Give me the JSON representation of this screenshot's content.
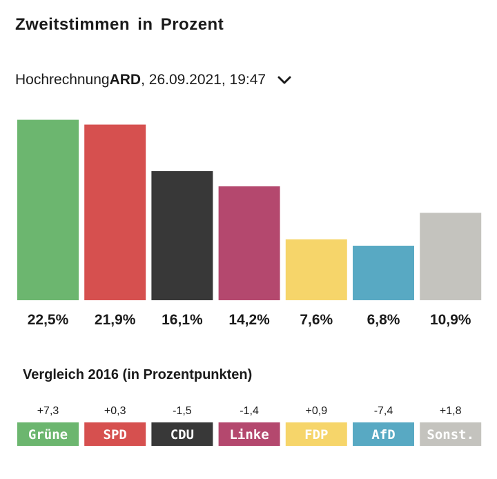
{
  "header": {
    "title": "Zweitstimmen in Prozent",
    "subtitle_prefix": "Hochrechnung ",
    "subtitle_source": "ARD",
    "subtitle_suffix": ", 26.09.2021, 19:47",
    "dropdown_icon": "chevron-down-icon"
  },
  "chart_data": {
    "type": "bar",
    "categories": [
      "Grüne",
      "SPD",
      "CDU",
      "Linke",
      "FDP",
      "AfD",
      "Sonst."
    ],
    "values": [
      22.5,
      21.9,
      16.1,
      14.2,
      7.6,
      6.8,
      10.9
    ],
    "value_labels": [
      "22,5%",
      "21,9%",
      "16,1%",
      "14,2%",
      "7,6%",
      "6,8%",
      "10,9%"
    ],
    "colors": [
      "#6cb66f",
      "#d6504f",
      "#383838",
      "#b4486e",
      "#f6d56a",
      "#58a9c3",
      "#c4c3be"
    ],
    "grid": false
  },
  "comparison": {
    "title": "Vergleich 2016 (in Prozentpunkten)",
    "deltas": [
      "+7,3",
      "+0,3",
      "-1,5",
      "-1,4",
      "+0,9",
      "-7,4",
      "+1,8"
    ],
    "labels": [
      "Grüne",
      "SPD",
      "CDU",
      "Linke",
      "FDP",
      "AfD",
      "Sonst."
    ]
  }
}
